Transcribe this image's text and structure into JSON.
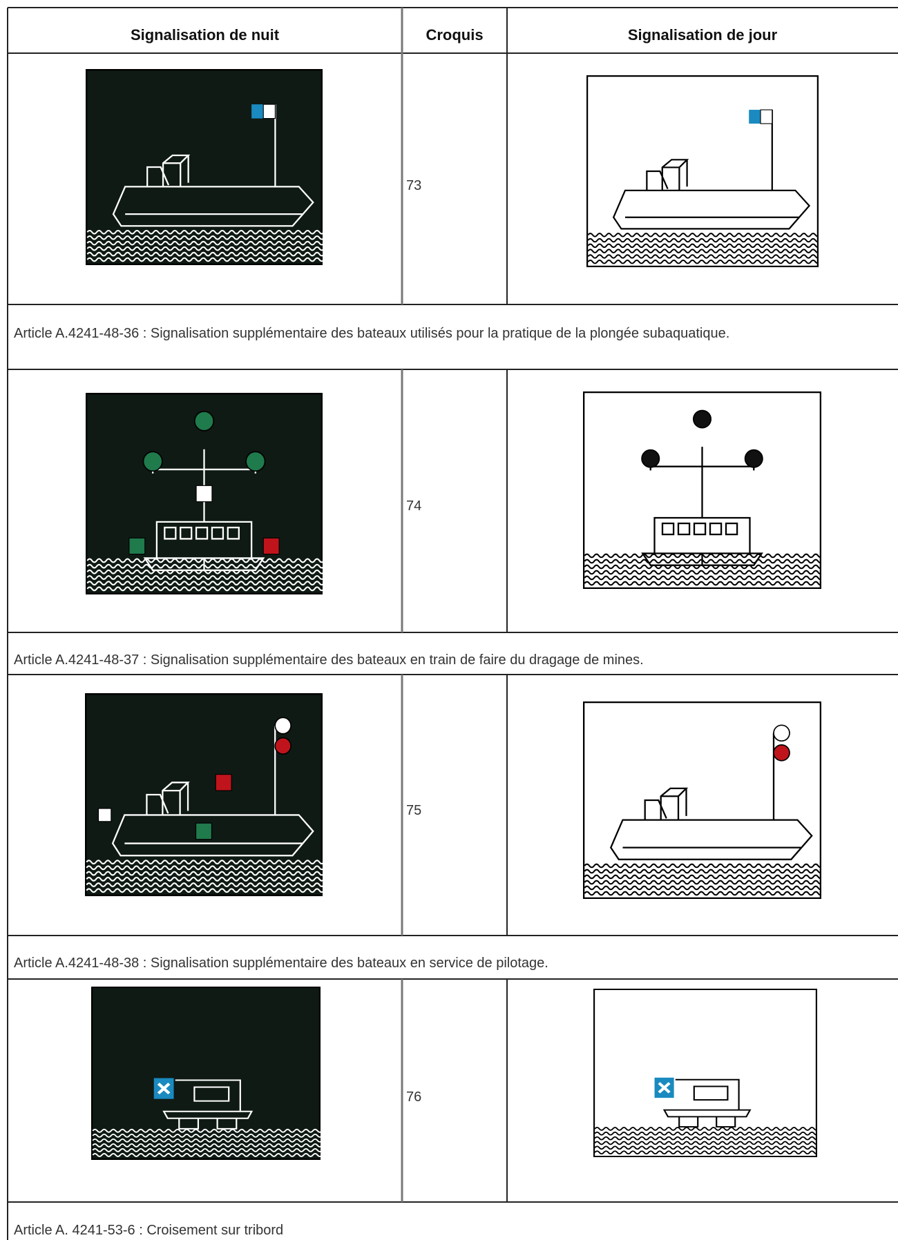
{
  "header": {
    "night": "Signalisation de nuit",
    "sketch": "Croquis",
    "day": "Signalisation de jour"
  },
  "rows": [
    {
      "sketch": "73",
      "article": "Article A.4241-48-36 : Signalisation supplémentaire des bateaux utilisés pour la pratique de la plongée subaquatique."
    },
    {
      "sketch": "74",
      "article": "Article A.4241-48-37 : Signalisation supplémentaire des bateaux en train de faire du dragage de mines."
    },
    {
      "sketch": "75",
      "article": "Article A.4241-48-38 : Signalisation supplémentaire des bateaux en service de pilotage."
    },
    {
      "sketch": "76",
      "article": "Article A. 4241-53-6 : Croisement sur tribord"
    }
  ]
}
